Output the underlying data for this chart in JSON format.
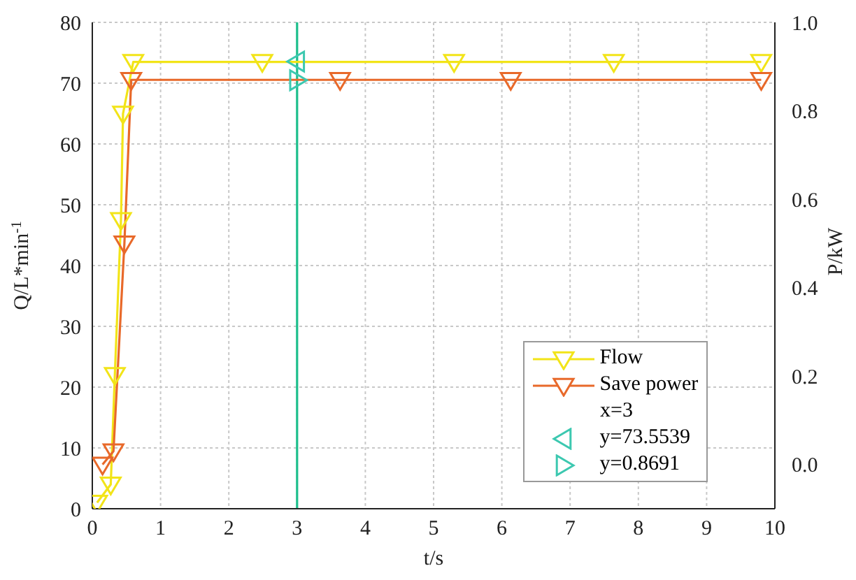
{
  "chart_data": {
    "type": "line",
    "xlabel": "t/s",
    "ylabel": "Q/L*min$^{-1}$",
    "y2label": "P/kW",
    "xlim": [
      0,
      10
    ],
    "xticks": [
      0,
      1,
      2,
      3,
      4,
      5,
      6,
      7,
      8,
      9,
      10
    ],
    "ylim": [
      0,
      80
    ],
    "yticks": [
      0,
      10,
      20,
      30,
      40,
      50,
      60,
      70,
      80
    ],
    "y2lim": [
      -0.1,
      1.0
    ],
    "y2ticks": [
      {
        "value": 0,
        "label": "0.0"
      },
      {
        "value": 0.2,
        "label": "0.2"
      },
      {
        "value": 0.4,
        "label": "0.4"
      },
      {
        "value": 0.6,
        "label": "0.6"
      },
      {
        "value": 0.8,
        "label": "0.8"
      },
      {
        "value": 1.0,
        "label": "1.0"
      }
    ],
    "grid": true,
    "legend": "bottom right",
    "marker": "triangle",
    "series": [
      {
        "name": "Flow",
        "color": "#f2e418",
        "x": [
          0.07,
          0.27,
          0.33,
          0.42,
          0.45,
          0.6,
          2.49,
          5.3,
          7.64,
          9.8
        ],
        "values": [
          1,
          4,
          22,
          47.5,
          65,
          73.5,
          73.5,
          73.5,
          73.5,
          73.5
        ]
      },
      {
        "name": "Save power",
        "axis": "y2",
        "color": "#e8692a",
        "x": [
          0.15,
          0.31,
          0.47,
          0.57,
          3.63,
          6.13,
          9.8
        ],
        "values": [
          0.0,
          0.03,
          0.5,
          0.87,
          0.87,
          0.87,
          0.87
        ]
      },
      {
        "name": "y=73.5539",
        "type": "scatter",
        "color": "#3cc8b0",
        "x": [
          3
        ],
        "values": [
          73.5539
        ]
      },
      {
        "name": "y=0.8691",
        "type": "scatter",
        "axis": "y2",
        "color": "#3cc8b0",
        "x": [
          3
        ],
        "values": [
          0.8691
        ]
      }
    ],
    "ref_lines": [
      {
        "axis": "x",
        "value": 3,
        "color": "#1dbf8c"
      }
    ],
    "annotations": [
      "x=3"
    ]
  }
}
